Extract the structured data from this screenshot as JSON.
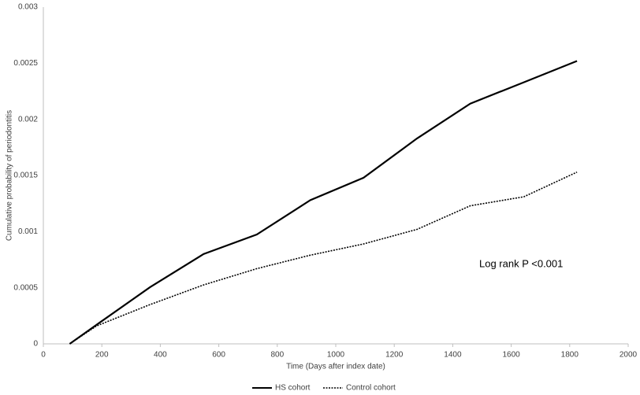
{
  "chart_data": {
    "type": "line",
    "x_label": "Time (Days after index date)",
    "y_label": "Cumulative probability of periodontitis",
    "annotation": "Log rank P <0.001",
    "x": [
      90,
      182,
      365,
      548,
      730,
      913,
      1095,
      1278,
      1460,
      1643,
      1825
    ],
    "series": [
      {
        "name": "HS cohort",
        "color": "#000000",
        "line_style": "solid",
        "values": [
          0,
          0.00017,
          0.000505,
          0.0008,
          0.000974,
          0.00128,
          0.00148,
          0.00183,
          0.00214,
          0.00233,
          0.00252
        ]
      },
      {
        "name": "Control cohort",
        "color": "#000000",
        "line_style": "dotted",
        "values": [
          0,
          0.00016,
          0.00035,
          0.000525,
          0.00067,
          0.00079,
          0.00089,
          0.00102,
          0.00123,
          0.00131,
          0.00153
        ]
      }
    ],
    "xlim": [
      0,
      2000
    ],
    "xticks": [
      0,
      200,
      400,
      600,
      800,
      1000,
      1200,
      1400,
      1600,
      1800,
      2000
    ],
    "ylim": [
      0,
      0.003
    ],
    "yticks": [
      0,
      0.0005,
      0.001,
      0.0015,
      0.002,
      0.0025,
      0.003
    ],
    "grid": false,
    "legend": "bottom"
  }
}
